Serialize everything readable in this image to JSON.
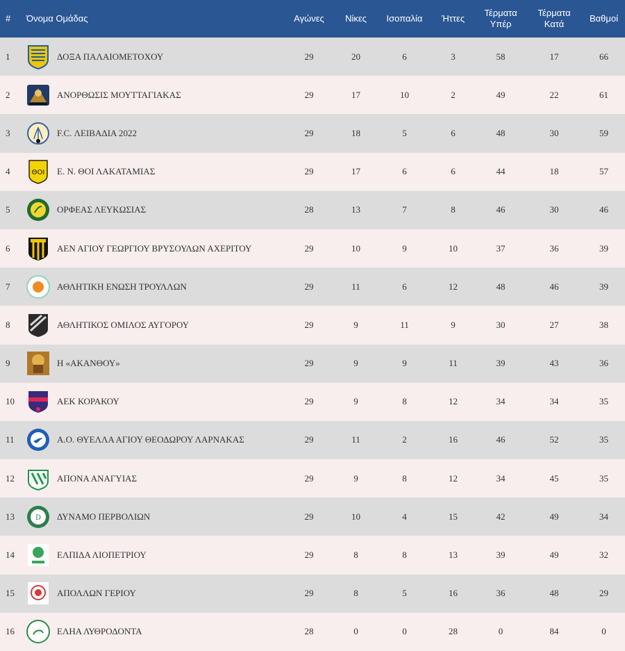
{
  "headers": {
    "pos": "#",
    "team": "Όνομα Ομάδας",
    "played": "Αγώνες",
    "wins": "Νίκες",
    "draws": "Ισοπαλία",
    "losses": "Ήττες",
    "gf_line1": "Τέρματα",
    "gf_line2": "Υπέρ",
    "ga_line1": "Τέρματα",
    "ga_line2": "Κατά",
    "points": "Βαθμοί"
  },
  "rows": [
    {
      "pos": "1",
      "team": "ΔΟΞΑ ΠΑΛΑΙΟΜΕΤΟΧΟΥ",
      "played": "29",
      "wins": "20",
      "draws": "6",
      "losses": "3",
      "gf": "58",
      "ga": "17",
      "points": "66",
      "logo": "doxa-crest"
    },
    {
      "pos": "2",
      "team": "ΑΝΟΡΘΩΣΙΣ ΜΟΥΤΤΑΓΙΑΚΑΣ",
      "played": "29",
      "wins": "17",
      "draws": "10",
      "losses": "2",
      "gf": "49",
      "ga": "22",
      "points": "61",
      "logo": "anorthosis-crest"
    },
    {
      "pos": "3",
      "team": "F.C. ΛΕΙΒΑΔΙΑ 2022",
      "played": "29",
      "wins": "18",
      "draws": "5",
      "losses": "6",
      "gf": "48",
      "ga": "30",
      "points": "59",
      "logo": "livadia-crest"
    },
    {
      "pos": "4",
      "team": "Ε. Ν. ΘΟΙ ΛΑΚΑΤΑΜΙΑΣ",
      "played": "29",
      "wins": "17",
      "draws": "6",
      "losses": "6",
      "gf": "44",
      "ga": "18",
      "points": "57",
      "logo": "thoi-crest"
    },
    {
      "pos": "5",
      "team": "ΟΡΦΕΑΣ ΛΕΥΚΩΣΙΑΣ",
      "played": "28",
      "wins": "13",
      "draws": "7",
      "losses": "8",
      "gf": "46",
      "ga": "30",
      "points": "46",
      "logo": "orfeas-crest"
    },
    {
      "pos": "6",
      "team": "ΑΕΝ ΑΓΙΟΥ ΓΕΩΡΓΙΟΥ ΒΡΥΣΟΥΛΩΝ ΑΧΕΡΙΤΟΥ",
      "played": "29",
      "wins": "10",
      "draws": "9",
      "losses": "10",
      "gf": "37",
      "ga": "36",
      "points": "39",
      "logo": "aen-crest"
    },
    {
      "pos": "7",
      "team": "ΑΘΛΗΤΙΚΗ ΕΝΩΣΗ ΤΡΟΥΛΛΩΝ",
      "played": "29",
      "wins": "11",
      "draws": "6",
      "losses": "12",
      "gf": "48",
      "ga": "46",
      "points": "39",
      "logo": "troulloi-crest"
    },
    {
      "pos": "8",
      "team": "ΑΘΛΗΤΙΚΟΣ ΟΜΙΛΟΣ ΑΥΓΟΡΟΥ",
      "played": "29",
      "wins": "9",
      "draws": "11",
      "losses": "9",
      "gf": "30",
      "ga": "27",
      "points": "38",
      "logo": "avgorou-crest"
    },
    {
      "pos": "9",
      "team": "Η «ΑΚΑΝΘΟΥ»",
      "played": "29",
      "wins": "9",
      "draws": "9",
      "losses": "11",
      "gf": "39",
      "ga": "43",
      "points": "36",
      "logo": "akanthou-crest"
    },
    {
      "pos": "10",
      "team": "ΑΕΚ ΚΟΡΑΚΟΥ",
      "played": "29",
      "wins": "9",
      "draws": "8",
      "losses": "12",
      "gf": "34",
      "ga": "34",
      "points": "35",
      "logo": "aek-korakou-crest"
    },
    {
      "pos": "11",
      "team": "Α.Ο. ΘΥΕΛΛΑ ΑΓΙΟΥ ΘΕΟΔΩΡΟΥ ΛΑΡΝΑΚΑΣ",
      "played": "29",
      "wins": "11",
      "draws": "2",
      "losses": "16",
      "gf": "46",
      "ga": "52",
      "points": "35",
      "logo": "thyella-crest"
    },
    {
      "pos": "12",
      "team": "ΑΠΟΝΑ ΑΝΑΓΥΙΑΣ",
      "played": "29",
      "wins": "9",
      "draws": "8",
      "losses": "12",
      "gf": "34",
      "ga": "45",
      "points": "35",
      "logo": "apona-crest"
    },
    {
      "pos": "13",
      "team": "ΔΥΝΑΜΟ ΠΕΡΒΟΛΙΩΝ",
      "played": "29",
      "wins": "10",
      "draws": "4",
      "losses": "15",
      "gf": "42",
      "ga": "49",
      "points": "34",
      "logo": "dynamo-crest"
    },
    {
      "pos": "14",
      "team": "ΕΛΠΙΔΑ ΛΙΟΠΕΤΡΙΟΥ",
      "played": "29",
      "wins": "8",
      "draws": "8",
      "losses": "13",
      "gf": "39",
      "ga": "49",
      "points": "32",
      "logo": "elpida-crest"
    },
    {
      "pos": "15",
      "team": "ΑΠΟΛΛΩΝ ΓΕΡΙΟΥ",
      "played": "29",
      "wins": "8",
      "draws": "5",
      "losses": "16",
      "gf": "36",
      "ga": "48",
      "points": "29",
      "logo": "apollon-geriou-crest"
    },
    {
      "pos": "16",
      "team": "ΕΛΗΑ ΛΥΘΡΟΔΟΝΤΑ",
      "played": "28",
      "wins": "0",
      "draws": "0",
      "losses": "28",
      "gf": "0",
      "ga": "84",
      "points": "0",
      "logo": "elia-crest"
    }
  ]
}
